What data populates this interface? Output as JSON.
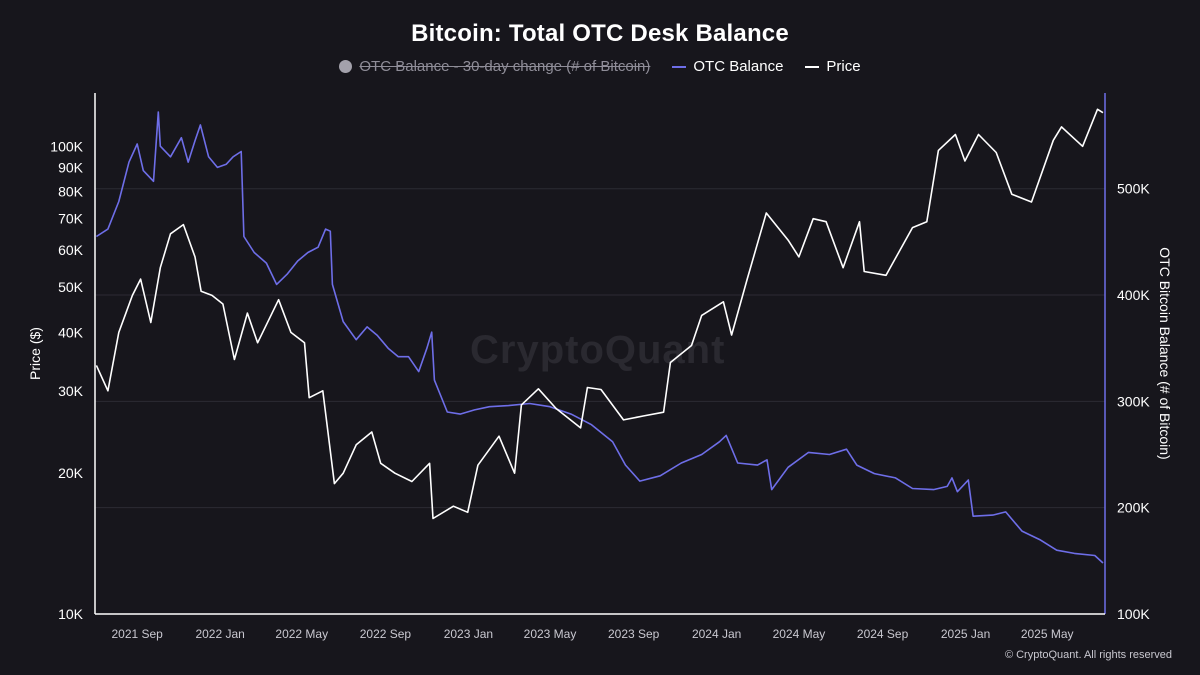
{
  "chart_data": {
    "type": "line",
    "title": "Bitcoin: Total OTC Desk Balance",
    "legend": {
      "placement": "top-center",
      "entries": [
        {
          "label": "OTC Balance - 30-day change (# of Bitcoin)",
          "color": "#a3a1ab",
          "hidden": true
        },
        {
          "label": "OTC Balance",
          "color": "#6e6ee8",
          "hidden": false
        },
        {
          "label": "Price",
          "color": "#ffffff",
          "hidden": false
        }
      ]
    },
    "x_axis": {
      "type": "date",
      "range": [
        "2021-07-01",
        "2025-07-25"
      ],
      "ticks": [
        "2021 Sep",
        "2022 Jan",
        "2022 May",
        "2022 Sep",
        "2023 Jan",
        "2023 May",
        "2023 Sep",
        "2024 Jan",
        "2024 May",
        "2024 Sep",
        "2025 Jan",
        "2025 May"
      ],
      "tick_dates": [
        "2021-09-01",
        "2022-01-01",
        "2022-05-01",
        "2022-09-01",
        "2023-01-01",
        "2023-05-01",
        "2023-09-01",
        "2024-01-01",
        "2024-05-01",
        "2024-09-01",
        "2025-01-01",
        "2025-05-01"
      ]
    },
    "y_left": {
      "label": "Price ($)",
      "scale": "log",
      "range": [
        10000,
        130000
      ],
      "ticks": [
        10000,
        20000,
        30000,
        40000,
        50000,
        60000,
        70000,
        80000,
        90000,
        100000
      ],
      "tick_labels": [
        "10K",
        "20K",
        "30K",
        "40K",
        "50K",
        "60K",
        "70K",
        "80K",
        "90K",
        "100K"
      ]
    },
    "y_right": {
      "label": "OTC Bitcoin Balance (# of Bitcoin)",
      "scale": "linear",
      "range": [
        100000,
        590000
      ],
      "ticks": [
        100000,
        200000,
        300000,
        400000,
        500000
      ],
      "tick_labels": [
        "100K",
        "200K",
        "300K",
        "400K",
        "500K"
      ]
    },
    "grid": {
      "horizontal": true,
      "vertical": false
    },
    "series": [
      {
        "name": "OTC Balance",
        "axis": "right",
        "color": "#6e6ee8",
        "points": [
          [
            "2021-07-03",
            455000
          ],
          [
            "2021-07-20",
            462000
          ],
          [
            "2021-08-05",
            488000
          ],
          [
            "2021-08-20",
            525000
          ],
          [
            "2021-09-01",
            542000
          ],
          [
            "2021-09-10",
            517000
          ],
          [
            "2021-09-25",
            507000
          ],
          [
            "2021-10-02",
            572000
          ],
          [
            "2021-10-05",
            540000
          ],
          [
            "2021-10-20",
            530000
          ],
          [
            "2021-11-05",
            548000
          ],
          [
            "2021-11-15",
            525000
          ],
          [
            "2021-11-25",
            545000
          ],
          [
            "2021-12-03",
            560000
          ],
          [
            "2021-12-15",
            530000
          ],
          [
            "2021-12-28",
            520000
          ],
          [
            "2022-01-10",
            523000
          ],
          [
            "2022-01-20",
            530000
          ],
          [
            "2022-02-01",
            535000
          ],
          [
            "2022-02-05",
            455000
          ],
          [
            "2022-02-20",
            440000
          ],
          [
            "2022-03-10",
            430000
          ],
          [
            "2022-03-25",
            410000
          ],
          [
            "2022-04-10",
            420000
          ],
          [
            "2022-04-25",
            432000
          ],
          [
            "2022-05-10",
            440000
          ],
          [
            "2022-05-25",
            445000
          ],
          [
            "2022-06-05",
            462000
          ],
          [
            "2022-06-12",
            460000
          ],
          [
            "2022-06-15",
            410000
          ],
          [
            "2022-07-01",
            375000
          ],
          [
            "2022-07-20",
            358000
          ],
          [
            "2022-08-05",
            370000
          ],
          [
            "2022-08-20",
            362000
          ],
          [
            "2022-09-05",
            350000
          ],
          [
            "2022-09-20",
            342000
          ],
          [
            "2022-10-05",
            342000
          ],
          [
            "2022-10-20",
            328000
          ],
          [
            "2022-11-01",
            350000
          ],
          [
            "2022-11-08",
            365000
          ],
          [
            "2022-11-12",
            320000
          ],
          [
            "2022-12-01",
            290000
          ],
          [
            "2022-12-20",
            288000
          ],
          [
            "2023-01-10",
            292000
          ],
          [
            "2023-02-01",
            295000
          ],
          [
            "2023-03-01",
            296000
          ],
          [
            "2023-04-01",
            298000
          ],
          [
            "2023-05-01",
            295000
          ],
          [
            "2023-06-01",
            288000
          ],
          [
            "2023-07-01",
            278000
          ],
          [
            "2023-08-01",
            262000
          ],
          [
            "2023-08-20",
            240000
          ],
          [
            "2023-09-10",
            225000
          ],
          [
            "2023-10-10",
            230000
          ],
          [
            "2023-11-10",
            242000
          ],
          [
            "2023-12-10",
            250000
          ],
          [
            "2024-01-05",
            262000
          ],
          [
            "2024-01-15",
            268000
          ],
          [
            "2024-02-01",
            242000
          ],
          [
            "2024-03-01",
            240000
          ],
          [
            "2024-03-15",
            245000
          ],
          [
            "2024-03-22",
            217000
          ],
          [
            "2024-04-15",
            238000
          ],
          [
            "2024-05-15",
            252000
          ],
          [
            "2024-06-15",
            250000
          ],
          [
            "2024-07-10",
            255000
          ],
          [
            "2024-07-25",
            240000
          ],
          [
            "2024-08-20",
            232000
          ],
          [
            "2024-09-20",
            228000
          ],
          [
            "2024-10-15",
            218000
          ],
          [
            "2024-11-15",
            217000
          ],
          [
            "2024-12-05",
            220000
          ],
          [
            "2024-12-12",
            228000
          ],
          [
            "2024-12-20",
            215000
          ],
          [
            "2025-01-05",
            226000
          ],
          [
            "2025-01-12",
            192000
          ],
          [
            "2025-02-10",
            193000
          ],
          [
            "2025-03-01",
            196000
          ],
          [
            "2025-03-25",
            178000
          ],
          [
            "2025-04-20",
            170000
          ],
          [
            "2025-05-15",
            160000
          ],
          [
            "2025-06-10",
            157000
          ],
          [
            "2025-07-10",
            155000
          ],
          [
            "2025-07-22",
            148000
          ]
        ]
      },
      {
        "name": "Price",
        "axis": "left",
        "color": "#ffffff",
        "points": [
          [
            "2021-07-03",
            34000
          ],
          [
            "2021-07-20",
            30000
          ],
          [
            "2021-08-05",
            40000
          ],
          [
            "2021-08-25",
            48000
          ],
          [
            "2021-09-06",
            52000
          ],
          [
            "2021-09-21",
            42000
          ],
          [
            "2021-10-05",
            55000
          ],
          [
            "2021-10-20",
            65000
          ],
          [
            "2021-11-08",
            68000
          ],
          [
            "2021-11-25",
            58000
          ],
          [
            "2021-12-04",
            49000
          ],
          [
            "2021-12-20",
            48000
          ],
          [
            "2022-01-05",
            46000
          ],
          [
            "2022-01-22",
            35000
          ],
          [
            "2022-02-10",
            44000
          ],
          [
            "2022-02-25",
            38000
          ],
          [
            "2022-03-28",
            47000
          ],
          [
            "2022-04-15",
            40000
          ],
          [
            "2022-05-05",
            38000
          ],
          [
            "2022-05-12",
            29000
          ],
          [
            "2022-06-01",
            30000
          ],
          [
            "2022-06-18",
            19000
          ],
          [
            "2022-07-01",
            20000
          ],
          [
            "2022-07-20",
            23000
          ],
          [
            "2022-08-12",
            24500
          ],
          [
            "2022-08-25",
            21000
          ],
          [
            "2022-09-15",
            20000
          ],
          [
            "2022-10-10",
            19200
          ],
          [
            "2022-11-05",
            21000
          ],
          [
            "2022-11-10",
            16000
          ],
          [
            "2022-12-10",
            17000
          ],
          [
            "2022-12-31",
            16500
          ],
          [
            "2023-01-15",
            20800
          ],
          [
            "2023-02-15",
            24000
          ],
          [
            "2023-03-10",
            20000
          ],
          [
            "2023-03-20",
            28000
          ],
          [
            "2023-04-14",
            30300
          ],
          [
            "2023-05-10",
            27500
          ],
          [
            "2023-06-15",
            25000
          ],
          [
            "2023-06-25",
            30500
          ],
          [
            "2023-07-15",
            30200
          ],
          [
            "2023-08-17",
            26000
          ],
          [
            "2023-09-15",
            26500
          ],
          [
            "2023-10-15",
            27000
          ],
          [
            "2023-10-25",
            34500
          ],
          [
            "2023-11-25",
            37500
          ],
          [
            "2023-12-10",
            43500
          ],
          [
            "2024-01-11",
            46500
          ],
          [
            "2024-01-23",
            39500
          ],
          [
            "2024-02-15",
            52000
          ],
          [
            "2024-03-14",
            72000
          ],
          [
            "2024-04-15",
            63000
          ],
          [
            "2024-05-01",
            58000
          ],
          [
            "2024-05-22",
            70000
          ],
          [
            "2024-06-10",
            69000
          ],
          [
            "2024-07-05",
            55000
          ],
          [
            "2024-07-29",
            69000
          ],
          [
            "2024-08-05",
            54000
          ],
          [
            "2024-09-06",
            53000
          ],
          [
            "2024-10-15",
            67000
          ],
          [
            "2024-11-05",
            69000
          ],
          [
            "2024-11-22",
            98000
          ],
          [
            "2024-12-17",
            106000
          ],
          [
            "2024-12-31",
            93000
          ],
          [
            "2025-01-20",
            106000
          ],
          [
            "2025-02-15",
            97000
          ],
          [
            "2025-03-10",
            79000
          ],
          [
            "2025-04-08",
            76000
          ],
          [
            "2025-05-10",
            103000
          ],
          [
            "2025-05-22",
            110000
          ],
          [
            "2025-06-22",
            100000
          ],
          [
            "2025-07-14",
            120000
          ],
          [
            "2025-07-22",
            118000
          ]
        ]
      }
    ]
  },
  "watermark": "CryptoQuant",
  "copyright": "© CryptoQuant. All rights reserved"
}
